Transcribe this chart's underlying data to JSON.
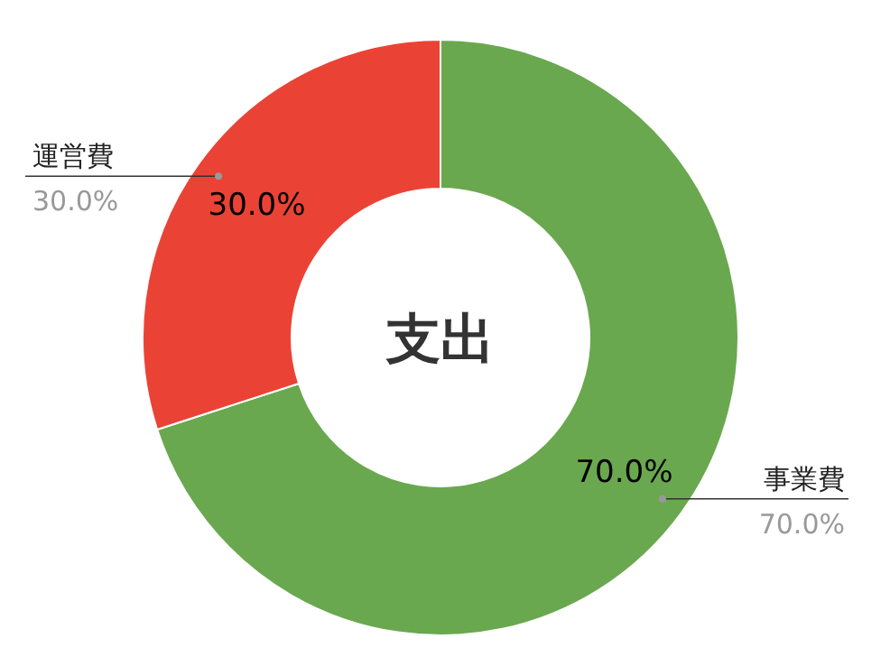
{
  "chart_data": {
    "type": "donut",
    "title": "支出",
    "categories": [
      "事業費",
      "運営費"
    ],
    "values": [
      70,
      30
    ],
    "colors": [
      "#6aa84f",
      "#ea4335"
    ],
    "value_labels": [
      "70.0%",
      "30.0%"
    ]
  }
}
